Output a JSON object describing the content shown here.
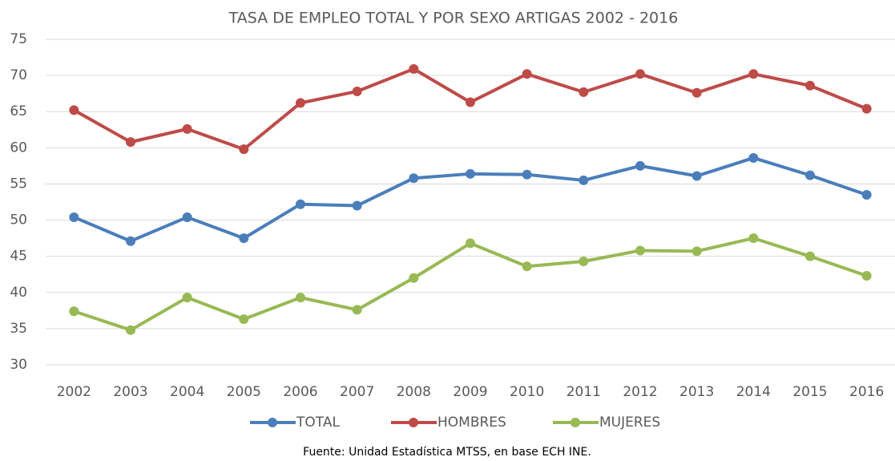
{
  "chart_data": {
    "type": "line",
    "title": "TASA DE EMPLEO TOTAL Y POR SEXO ARTIGAS 2002 - 2016",
    "source": "Fuente: Unidad Estadística MTSS, en base ECH INE.",
    "categories": [
      "2002",
      "2003",
      "2004",
      "2005",
      "2006",
      "2007",
      "2008",
      "2009",
      "2010",
      "2011",
      "2012",
      "2013",
      "2014",
      "2015",
      "2016"
    ],
    "series": [
      {
        "name": "TOTAL",
        "color": "#4a7ebb",
        "values": [
          50.4,
          47.1,
          50.4,
          47.5,
          52.2,
          52.0,
          55.8,
          56.4,
          56.3,
          55.5,
          57.5,
          56.1,
          58.6,
          56.2,
          53.5
        ]
      },
      {
        "name": "HOMBRES",
        "color": "#be4b48",
        "values": [
          65.2,
          60.8,
          62.6,
          59.8,
          66.2,
          67.8,
          70.9,
          66.3,
          70.2,
          67.7,
          70.2,
          67.6,
          70.2,
          68.6,
          65.4
        ]
      },
      {
        "name": "MUJERES",
        "color": "#98b954",
        "values": [
          37.4,
          34.8,
          39.3,
          36.3,
          39.3,
          37.6,
          42.0,
          46.8,
          43.6,
          44.3,
          45.8,
          45.7,
          47.5,
          45.0,
          42.3
        ]
      }
    ],
    "ylim": [
      30,
      75
    ],
    "yticks": [
      30,
      35,
      40,
      45,
      50,
      55,
      60,
      65,
      70,
      75
    ],
    "grid": true,
    "legend": "bottom"
  }
}
